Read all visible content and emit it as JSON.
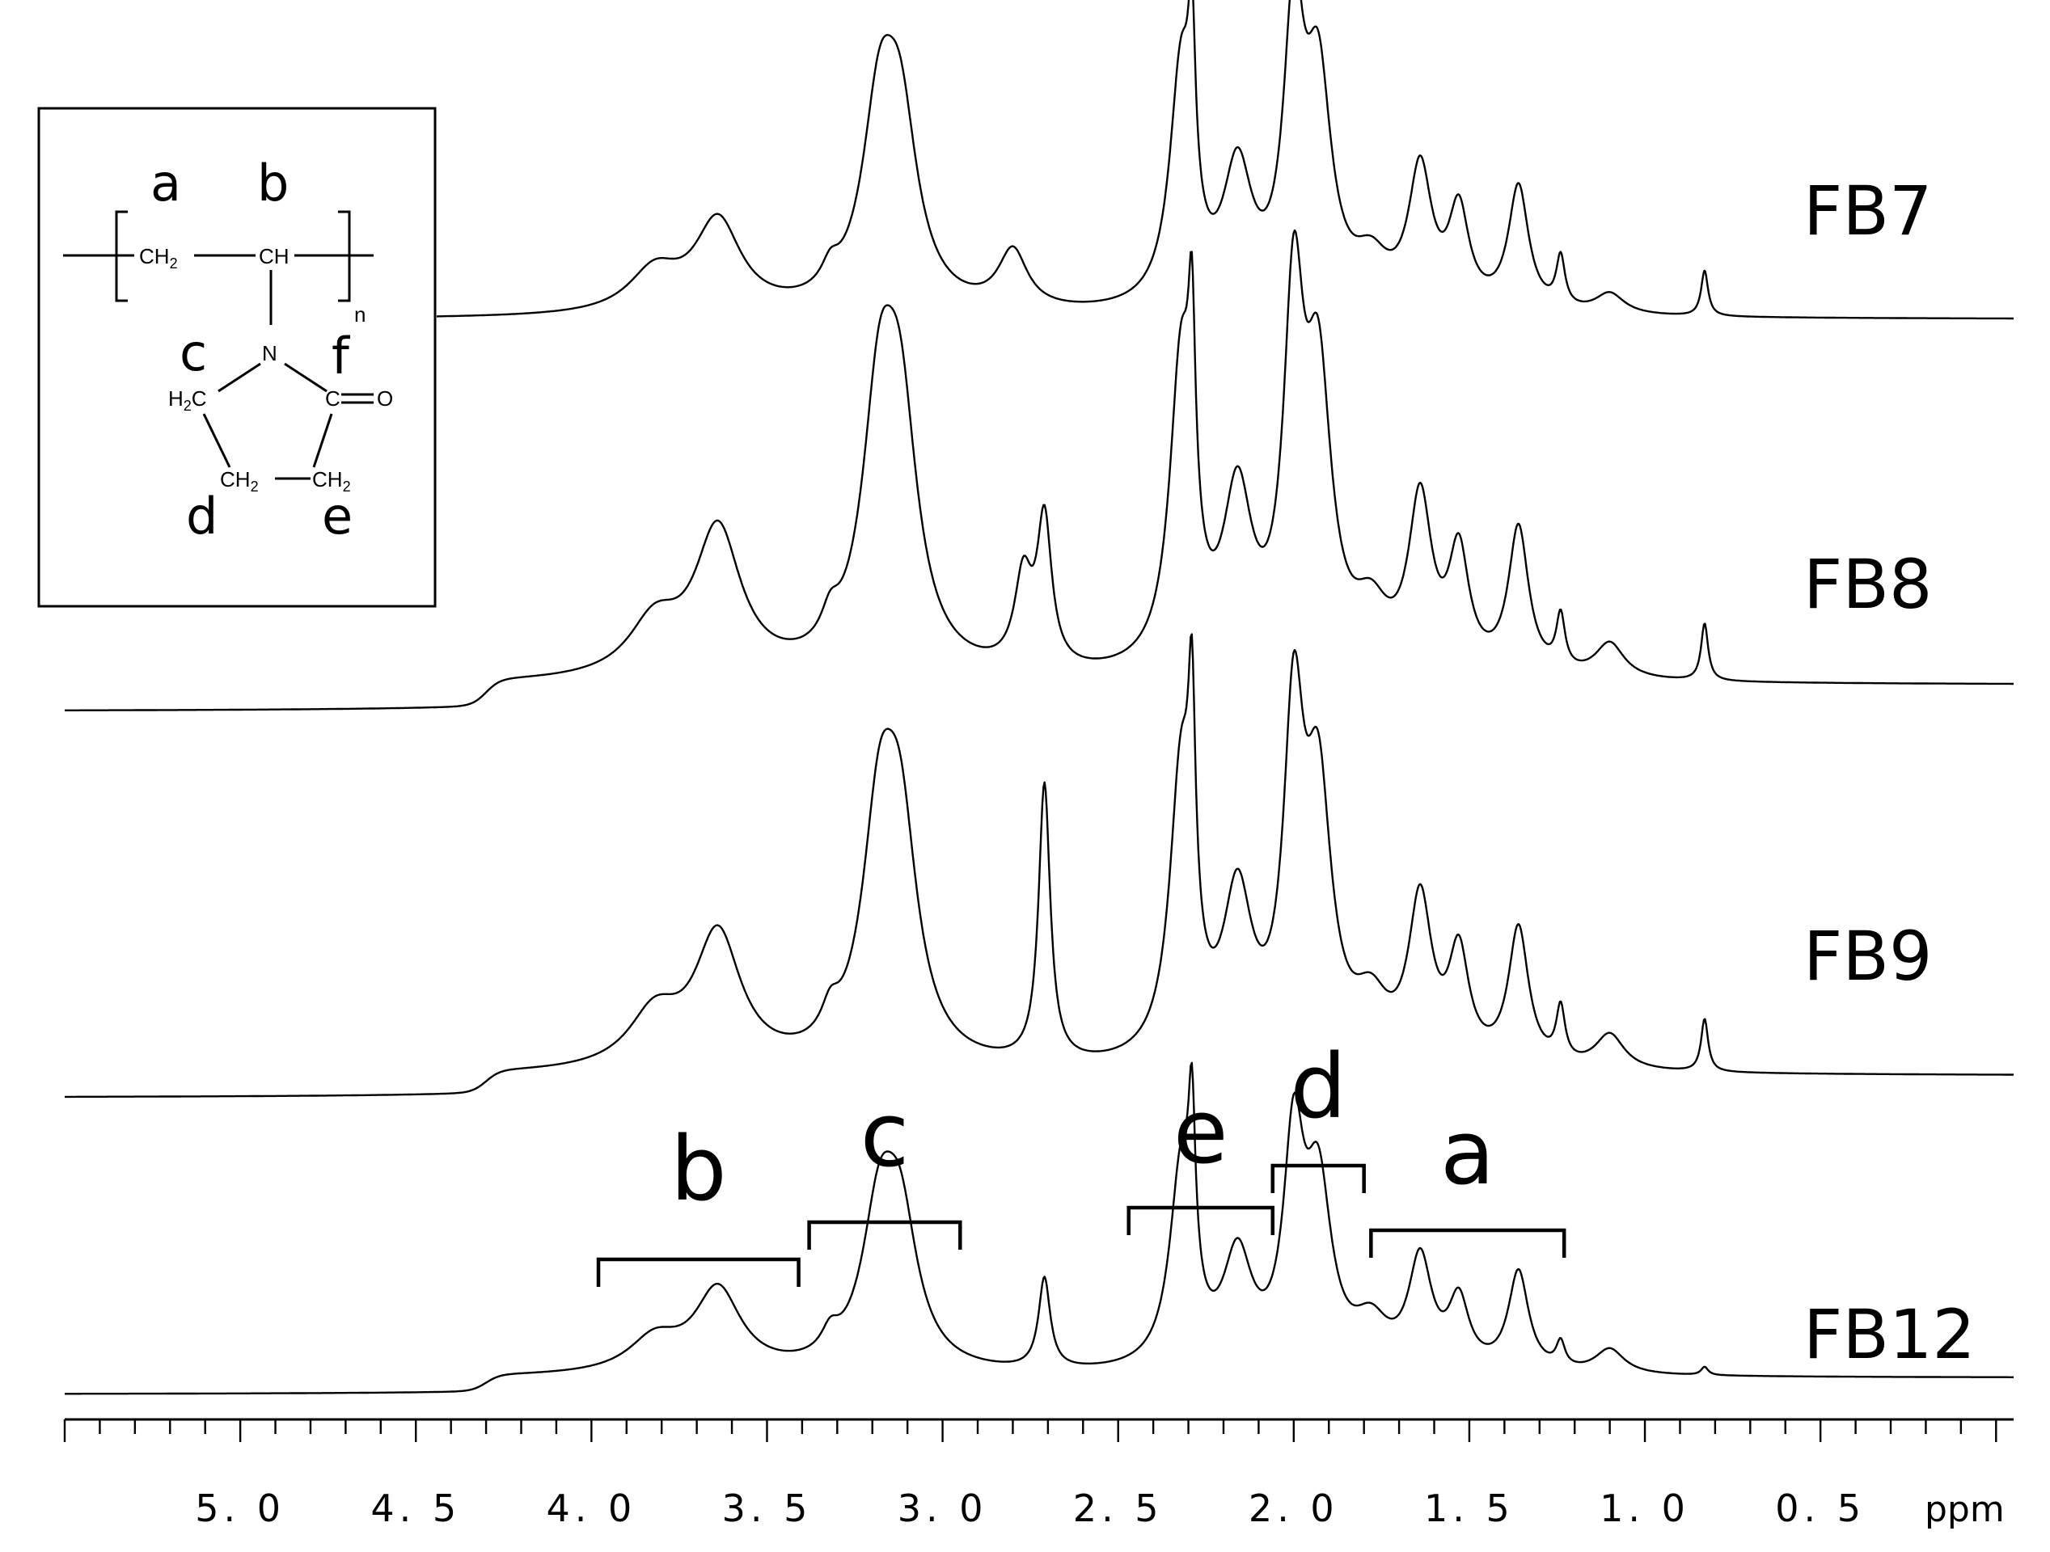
{
  "chart_data": {
    "type": "line",
    "xlabel": "ppm",
    "x_reversed": true,
    "xlim": [
      5.5,
      -0.05
    ],
    "x_ticks": [
      5.0,
      4.5,
      4.0,
      3.5,
      3.0,
      2.5,
      2.0,
      1.5,
      1.0,
      0.5
    ],
    "x_tick_labels": [
      "5. 0",
      "4. 5",
      "4. 0",
      "3. 5",
      "3. 0",
      "2. 5",
      "2. 0",
      "1. 5",
      "1. 0",
      "0. 5"
    ],
    "series": [
      {
        "name": "FB7",
        "baseline_left": 0.0,
        "shelf": 0.0,
        "peaks": [
          {
            "x": 3.82,
            "h": 0.1,
            "w": 0.09
          },
          {
            "x": 3.64,
            "h": 0.22,
            "w": 0.08
          },
          {
            "x": 3.32,
            "h": 0.05,
            "w": 0.03
          },
          {
            "x": 3.18,
            "h": 0.44,
            "w": 0.06
          },
          {
            "x": 3.12,
            "h": 0.4,
            "w": 0.06
          },
          {
            "x": 2.8,
            "h": 0.14,
            "w": 0.05
          },
          {
            "x": 2.32,
            "h": 0.58,
            "w": 0.04
          },
          {
            "x": 2.29,
            "h": 0.4,
            "w": 0.012
          },
          {
            "x": 2.16,
            "h": 0.32,
            "w": 0.05
          },
          {
            "x": 2.0,
            "h": 0.66,
            "w": 0.035
          },
          {
            "x": 1.93,
            "h": 0.52,
            "w": 0.045
          },
          {
            "x": 1.78,
            "h": 0.1,
            "w": 0.06
          },
          {
            "x": 1.64,
            "h": 0.33,
            "w": 0.04
          },
          {
            "x": 1.53,
            "h": 0.23,
            "w": 0.035
          },
          {
            "x": 1.36,
            "h": 0.3,
            "w": 0.035
          },
          {
            "x": 1.24,
            "h": 0.12,
            "w": 0.015
          },
          {
            "x": 1.1,
            "h": 0.05,
            "w": 0.05
          },
          {
            "x": 0.83,
            "h": 0.11,
            "w": 0.012
          }
        ]
      },
      {
        "name": "FB8",
        "baseline_left": 0.0,
        "shelf": 0.06,
        "peaks": [
          {
            "x": 3.82,
            "h": 0.12,
            "w": 0.09
          },
          {
            "x": 3.64,
            "h": 0.33,
            "w": 0.08
          },
          {
            "x": 3.32,
            "h": 0.06,
            "w": 0.03
          },
          {
            "x": 3.18,
            "h": 0.55,
            "w": 0.06
          },
          {
            "x": 3.12,
            "h": 0.5,
            "w": 0.06
          },
          {
            "x": 2.77,
            "h": 0.2,
            "w": 0.03
          },
          {
            "x": 2.71,
            "h": 0.33,
            "w": 0.025
          },
          {
            "x": 2.32,
            "h": 0.7,
            "w": 0.04
          },
          {
            "x": 2.29,
            "h": 0.45,
            "w": 0.012
          },
          {
            "x": 2.16,
            "h": 0.38,
            "w": 0.05
          },
          {
            "x": 2.0,
            "h": 0.78,
            "w": 0.035
          },
          {
            "x": 1.93,
            "h": 0.62,
            "w": 0.045
          },
          {
            "x": 1.78,
            "h": 0.12,
            "w": 0.06
          },
          {
            "x": 1.64,
            "h": 0.38,
            "w": 0.04
          },
          {
            "x": 1.53,
            "h": 0.26,
            "w": 0.035
          },
          {
            "x": 1.36,
            "h": 0.33,
            "w": 0.035
          },
          {
            "x": 1.24,
            "h": 0.12,
            "w": 0.015
          },
          {
            "x": 1.1,
            "h": 0.08,
            "w": 0.05
          },
          {
            "x": 0.83,
            "h": 0.13,
            "w": 0.012
          }
        ]
      },
      {
        "name": "FB9",
        "baseline_left": 0.0,
        "shelf": 0.05,
        "peaks": [
          {
            "x": 3.82,
            "h": 0.12,
            "w": 0.09
          },
          {
            "x": 3.64,
            "h": 0.3,
            "w": 0.08
          },
          {
            "x": 3.32,
            "h": 0.06,
            "w": 0.03
          },
          {
            "x": 3.18,
            "h": 0.5,
            "w": 0.06
          },
          {
            "x": 3.12,
            "h": 0.46,
            "w": 0.06
          },
          {
            "x": 2.71,
            "h": 0.63,
            "w": 0.02
          },
          {
            "x": 2.32,
            "h": 0.66,
            "w": 0.04
          },
          {
            "x": 2.29,
            "h": 0.5,
            "w": 0.012
          },
          {
            "x": 2.16,
            "h": 0.36,
            "w": 0.05
          },
          {
            "x": 2.0,
            "h": 0.73,
            "w": 0.035
          },
          {
            "x": 1.93,
            "h": 0.58,
            "w": 0.045
          },
          {
            "x": 1.78,
            "h": 0.12,
            "w": 0.06
          },
          {
            "x": 1.64,
            "h": 0.36,
            "w": 0.04
          },
          {
            "x": 1.53,
            "h": 0.24,
            "w": 0.035
          },
          {
            "x": 1.36,
            "h": 0.31,
            "w": 0.035
          },
          {
            "x": 1.24,
            "h": 0.12,
            "w": 0.015
          },
          {
            "x": 1.1,
            "h": 0.08,
            "w": 0.05
          },
          {
            "x": 0.83,
            "h": 0.12,
            "w": 0.012
          }
        ]
      },
      {
        "name": "FB12",
        "baseline_left": 0.0,
        "shelf": 0.04,
        "peaks": [
          {
            "x": 3.82,
            "h": 0.08,
            "w": 0.09
          },
          {
            "x": 3.64,
            "h": 0.2,
            "w": 0.08
          },
          {
            "x": 3.32,
            "h": 0.05,
            "w": 0.03
          },
          {
            "x": 3.18,
            "h": 0.35,
            "w": 0.06
          },
          {
            "x": 3.12,
            "h": 0.32,
            "w": 0.06
          },
          {
            "x": 2.71,
            "h": 0.22,
            "w": 0.02
          },
          {
            "x": 2.32,
            "h": 0.48,
            "w": 0.04
          },
          {
            "x": 2.29,
            "h": 0.4,
            "w": 0.012
          },
          {
            "x": 2.16,
            "h": 0.26,
            "w": 0.05
          },
          {
            "x": 2.0,
            "h": 0.52,
            "w": 0.035
          },
          {
            "x": 1.93,
            "h": 0.42,
            "w": 0.045
          },
          {
            "x": 1.78,
            "h": 0.1,
            "w": 0.06
          },
          {
            "x": 1.64,
            "h": 0.26,
            "w": 0.04
          },
          {
            "x": 1.53,
            "h": 0.16,
            "w": 0.035
          },
          {
            "x": 1.36,
            "h": 0.24,
            "w": 0.035
          },
          {
            "x": 1.24,
            "h": 0.06,
            "w": 0.015
          },
          {
            "x": 1.1,
            "h": 0.06,
            "w": 0.05
          },
          {
            "x": 0.83,
            "h": 0.02,
            "w": 0.012
          }
        ]
      }
    ],
    "annotations": [
      {
        "label": "b",
        "x_from": 3.98,
        "x_to": 3.41
      },
      {
        "label": "c",
        "x_from": 3.38,
        "x_to": 2.95
      },
      {
        "label": "e",
        "x_from": 2.47,
        "x_to": 2.06
      },
      {
        "label": "d",
        "x_from": 2.06,
        "x_to": 1.8
      },
      {
        "label": "a",
        "x_from": 1.78,
        "x_to": 1.23
      }
    ]
  },
  "structure": {
    "atoms": {
      "ch2_backbone": "CH2",
      "ch_backbone": "CH",
      "n": "N",
      "h2c": "H2C",
      "c_carbonyl": "C",
      "o": "O",
      "ch2_ring_left": "CH2",
      "ch2_ring_right": "CH2",
      "repeat": "n"
    },
    "labels": {
      "a": "a",
      "b": "b",
      "c": "c",
      "d": "d",
      "e": "e",
      "f": "f"
    }
  }
}
